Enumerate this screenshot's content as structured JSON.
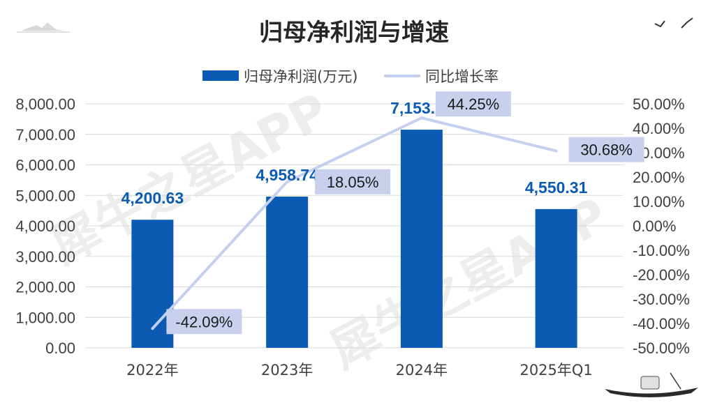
{
  "chart_data": {
    "type": "bar",
    "title": "归母净利润与增速",
    "categories": [
      "2022年",
      "2023年",
      "2024年",
      "2025年Q1"
    ],
    "series": [
      {
        "name": "归母净利润(万元)",
        "type": "bar",
        "axis": "left",
        "values": [
          4200.63,
          4958.74,
          7153.21,
          4550.31
        ],
        "labels": [
          "4,200.63",
          "4,958.74",
          "7,153.21",
          "4,550.31"
        ],
        "color": "#0b5bb5"
      },
      {
        "name": "同比增长率",
        "type": "line",
        "axis": "right",
        "values": [
          -42.09,
          18.05,
          44.25,
          30.68
        ],
        "labels": [
          "-42.09%",
          "18.05%",
          "44.25%",
          "30.68%"
        ],
        "color": "#c5cff0"
      }
    ],
    "y_left": {
      "ylim": [
        0,
        8000
      ],
      "ticks": [
        0,
        1000,
        2000,
        3000,
        4000,
        5000,
        6000,
        7000,
        8000
      ],
      "tick_labels": [
        "0.00",
        "1,000.00",
        "2,000.00",
        "3,000.00",
        "4,000.00",
        "5,000.00",
        "6,000.00",
        "7,000.00",
        "8,000.00"
      ]
    },
    "y_right": {
      "ylim": [
        -50,
        50
      ],
      "ticks": [
        -50,
        -40,
        -30,
        -20,
        -10,
        0,
        10,
        20,
        30,
        40,
        50
      ],
      "tick_labels": [
        "-50.00%",
        "-40.00%",
        "-30.00%",
        "-20.00%",
        "-10.00%",
        "0.00%",
        "10.00%",
        "20.00%",
        "30.00%",
        "40.00%",
        "50.00%"
      ]
    },
    "grid": true,
    "legend": "top-center",
    "line_label_bg": "#c8d0ee",
    "bar_label_color": "#0b5bb5"
  },
  "watermark": {
    "text": "犀牛之星APP"
  }
}
